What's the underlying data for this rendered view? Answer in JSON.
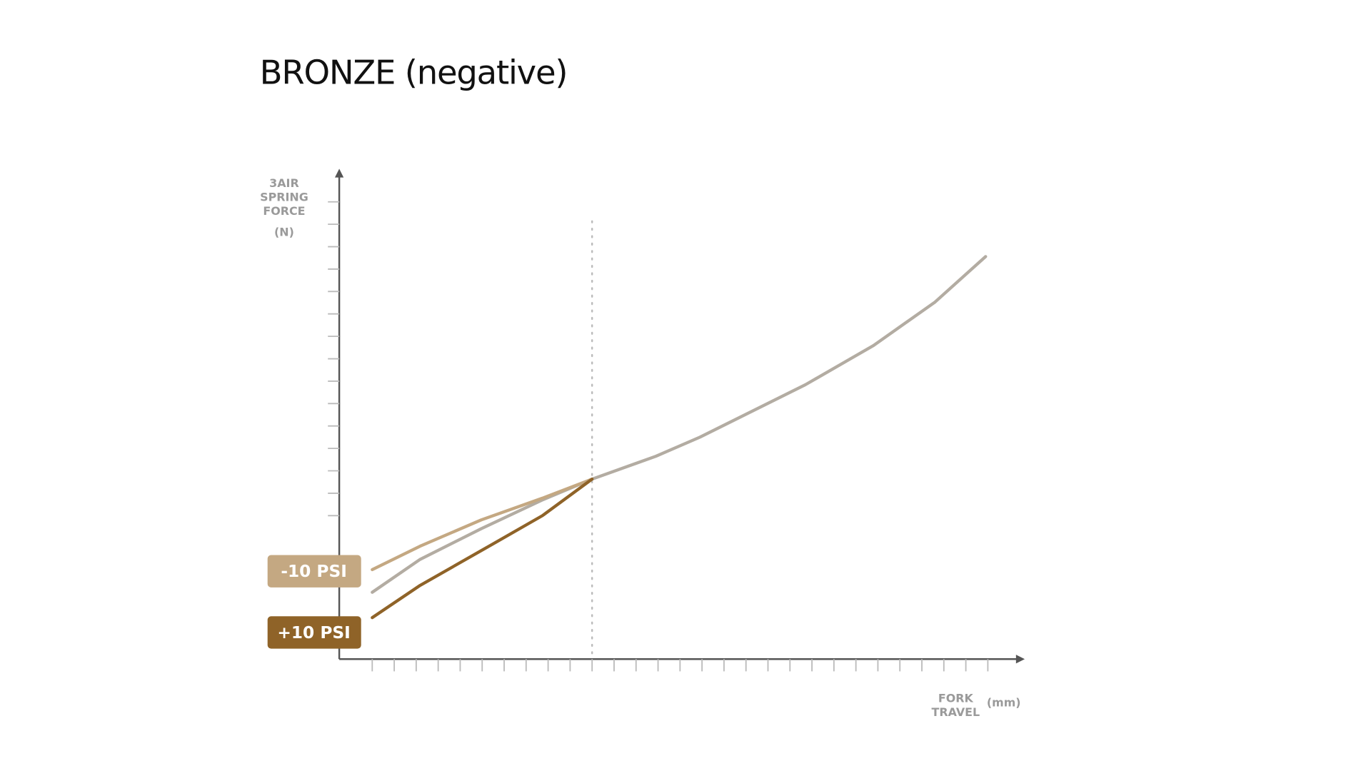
{
  "chart_data": {
    "type": "line",
    "title": "BRONZE (negative)",
    "y_label": [
      "3AIR",
      "SPRING",
      "FORCE",
      "(N)"
    ],
    "x_label": [
      "FORK",
      "TRAVEL"
    ],
    "x_unit": "(mm)",
    "x": [
      0,
      2.18,
      4.96,
      7.74,
      10,
      12.9,
      14.9,
      17.3,
      19.7,
      22.8,
      25.6,
      27.9
    ],
    "series": [
      {
        "name": "-10 PSI",
        "color": "#c4a882",
        "values": [
          -2.41,
          -1.36,
          -0.19,
          0.78,
          1.63,
          null,
          null,
          null,
          null,
          null,
          null,
          null
        ]
      },
      {
        "name": "+10 PSI",
        "color": "#8f6328",
        "values": [
          -4.55,
          -3.11,
          -1.56,
          0,
          1.63,
          null,
          null,
          null,
          null,
          null,
          null,
          null
        ]
      },
      {
        "color": "#b3aca2",
        "values": [
          -3.42,
          -1.95,
          -0.58,
          0.7,
          1.63,
          2.65,
          3.5,
          4.67,
          5.84,
          7.59,
          9.53,
          11.56
        ]
      }
    ],
    "reference_x": 10,
    "xlim": [
      -1.5,
      29.6
    ],
    "ylim": [
      -6.4,
      15.4
    ],
    "xticks": [
      0,
      1,
      2,
      3,
      4,
      5,
      6,
      7,
      8,
      9,
      10,
      11,
      12,
      13,
      14,
      15,
      16,
      17,
      18,
      19,
      20,
      21,
      22,
      23,
      24,
      25,
      26,
      27,
      28
    ],
    "yticks": [
      0,
      1,
      2,
      3,
      4,
      5,
      6,
      7,
      8,
      9,
      10,
      11,
      12,
      13,
      14
    ],
    "grid": false,
    "legend": "left"
  }
}
